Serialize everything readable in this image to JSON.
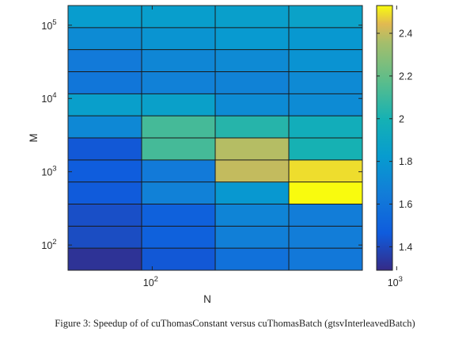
{
  "caption": "Figure 3: Speedup of of cuThomasConstant versus cuThomasBatch (gtsvInterleavedBatch)",
  "chart_data": {
    "type": "heatmap",
    "xlabel": "N",
    "ylabel": "M",
    "x_scale": "log",
    "y_scale": "log",
    "x_tick_labels": [
      {
        "value": 100,
        "base": "10",
        "exp": "2"
      },
      {
        "value": 1000,
        "base": "10",
        "exp": "3"
      }
    ],
    "y_tick_labels": [
      {
        "value": 100,
        "base": "10",
        "exp": "2"
      },
      {
        "value": 1000,
        "base": "10",
        "exp": "3"
      },
      {
        "value": 10000,
        "base": "10",
        "exp": "4"
      },
      {
        "value": 100000,
        "base": "10",
        "exp": "5"
      }
    ],
    "x": [
      64,
      128,
      256,
      512
    ],
    "y": [
      64,
      128,
      256,
      512,
      1024,
      2048,
      4096,
      8192,
      16384,
      32768,
      65536,
      131072
    ],
    "values": [
      [
        1.32,
        1.45,
        1.58,
        1.62
      ],
      [
        1.41,
        1.49,
        1.66,
        1.65
      ],
      [
        1.42,
        1.49,
        1.69,
        1.65
      ],
      [
        1.46,
        1.67,
        1.8,
        2.53
      ],
      [
        1.47,
        1.63,
        2.4,
        2.49
      ],
      [
        1.45,
        2.12,
        2.38,
        2.0
      ],
      [
        1.71,
        2.12,
        2.04,
        1.96
      ],
      [
        1.85,
        1.86,
        1.73,
        1.73
      ],
      [
        1.61,
        1.67,
        1.68,
        1.72
      ],
      [
        1.63,
        1.7,
        1.72,
        1.77
      ],
      [
        1.73,
        1.78,
        1.81,
        1.8
      ],
      [
        1.83,
        1.84,
        1.85,
        1.87
      ]
    ],
    "colorbar": {
      "min": 1.29,
      "max": 2.53,
      "ticks": [
        "1.4",
        "1.6",
        "1.8",
        "2",
        "2.2",
        "2.4"
      ],
      "colormap": "parula"
    }
  }
}
